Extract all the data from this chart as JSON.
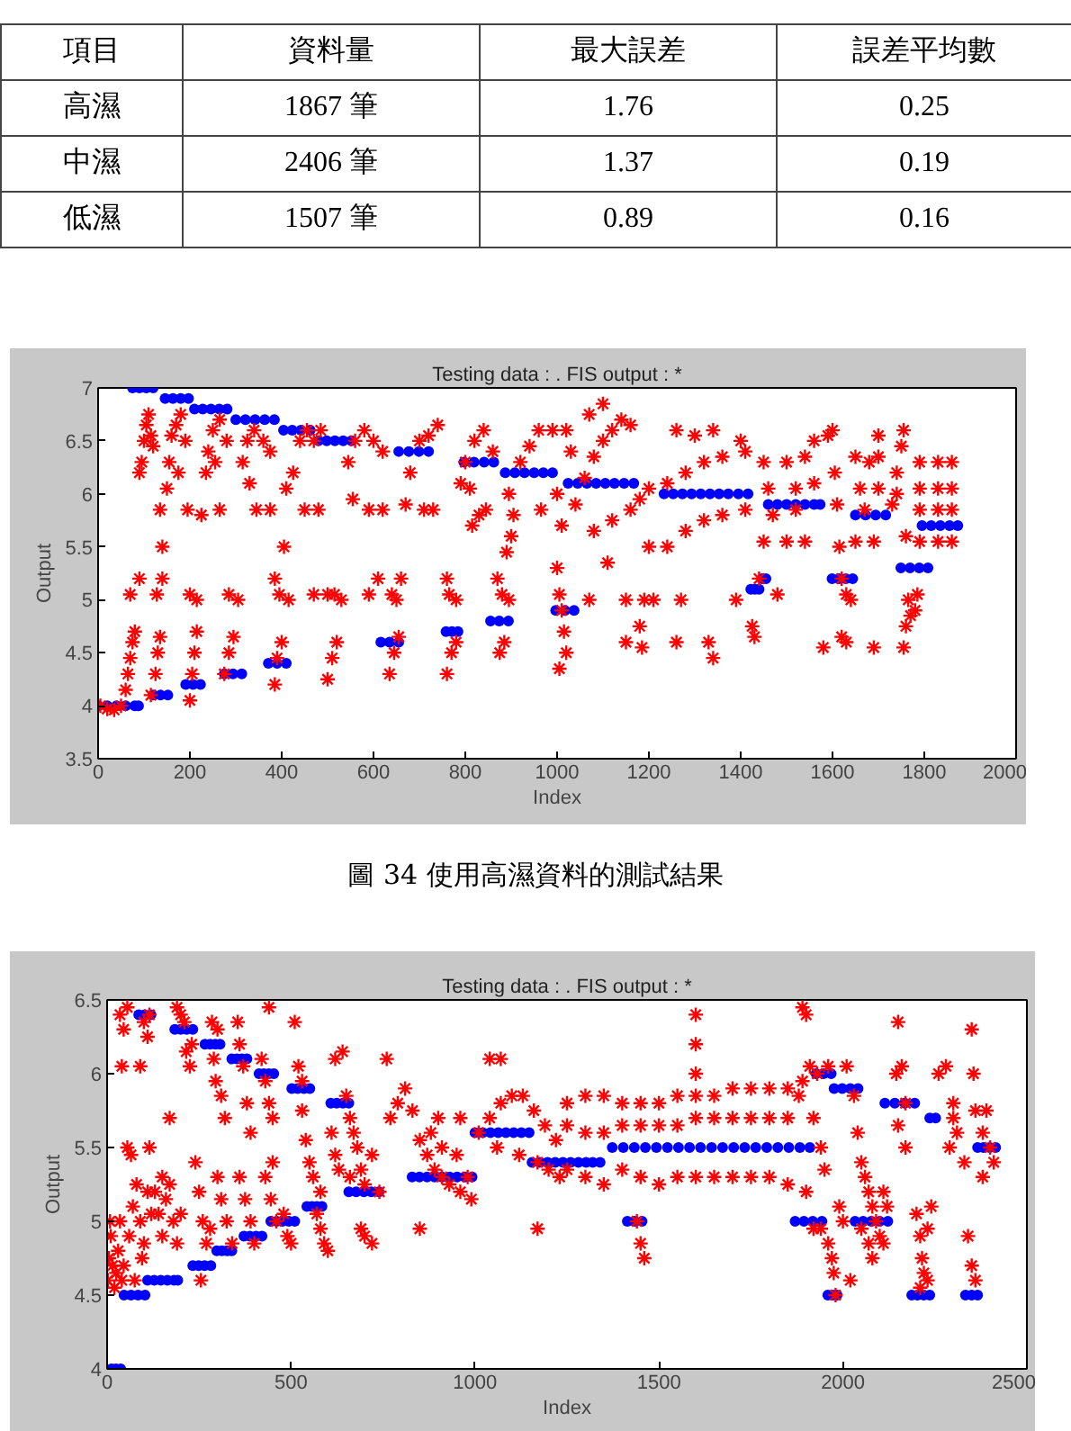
{
  "chart_data": [
    {
      "type": "other",
      "categories": [
        "項目",
        "資料量",
        "最大誤差",
        "誤差平均數"
      ],
      "y_categories": [
        "高濕",
        "中濕",
        "低濕"
      ],
      "cell_labels": [
        [
          "1867 筆",
          "1.76",
          "0.25"
        ],
        [
          "2406 筆",
          "1.37",
          "0.19"
        ],
        [
          "1507 筆",
          "0.89",
          "0.16"
        ]
      ]
    },
    {
      "type": "scatter",
      "title": "Testing data : . FIS output : *",
      "xlabel": "Index",
      "ylabel": "Output",
      "xlim": [
        0,
        2000
      ],
      "xticks": [
        0,
        200,
        400,
        600,
        800,
        1000,
        1200,
        1400,
        1600,
        1800,
        2000
      ],
      "ylim": [
        3.5,
        7
      ],
      "yticks": [
        3.5,
        4,
        4.5,
        5,
        5.5,
        6,
        6.5,
        7
      ],
      "annotations": [
        "圖 34 使用高濕資料的測試結果"
      ],
      "series": [
        {
          "color": "#0000ff",
          "marker": "circle",
          "x": [
            0,
            20,
            40,
            60,
            80,
            88,
            75,
            90,
            105,
            120,
            120,
            136,
            152,
            146,
            163,
            180,
            197,
            191,
            207,
            223,
            210,
            228,
            246,
            264,
            281,
            275,
            294,
            313,
            300,
            321,
            342,
            363,
            384,
            371,
            390,
            410,
            404,
            423,
            442,
            462,
            480,
            498,
            516,
            534,
            552,
            616,
            635,
            655,
            655,
            677,
            699,
            720,
            758,
            771,
            784,
            797,
            819,
            841,
            862,
            855,
            874,
            894,
            887,
            908,
            929,
            950,
            970,
            990,
            997,
            1017,
            1037,
            1024,
            1045,
            1065,
            1085,
            1105,
            1125,
            1146,
            1167,
            1233,
            1253,
            1273,
            1293,
            1313,
            1333,
            1353,
            1373,
            1395,
            1416,
            1422,
            1431,
            1440,
            1447,
            1455,
            1460,
            1480,
            1500,
            1520,
            1540,
            1560,
            1573,
            1599,
            1614,
            1629,
            1644,
            1650,
            1672,
            1694,
            1716,
            1749,
            1769,
            1789,
            1808,
            1795,
            1815,
            1835,
            1855,
            1873
          ],
          "values": [
            4.0,
            4.0,
            4.0,
            4.0,
            4.0,
            4.0,
            7.0,
            7.0,
            7.0,
            7.0,
            4.1,
            4.1,
            4.1,
            6.9,
            6.9,
            6.9,
            6.9,
            4.2,
            4.2,
            4.2,
            6.8,
            6.8,
            6.8,
            6.8,
            6.8,
            4.3,
            4.3,
            4.3,
            6.7,
            6.7,
            6.7,
            6.7,
            6.7,
            4.4,
            4.4,
            4.4,
            6.6,
            6.6,
            6.6,
            6.6,
            6.5,
            6.5,
            6.5,
            6.5,
            6.5,
            4.6,
            4.6,
            4.6,
            6.4,
            6.4,
            6.4,
            6.4,
            4.7,
            4.7,
            4.7,
            6.3,
            6.3,
            6.3,
            6.3,
            4.8,
            4.8,
            4.8,
            6.2,
            6.2,
            6.2,
            6.2,
            6.2,
            6.2,
            4.9,
            4.9,
            4.9,
            6.1,
            6.1,
            6.1,
            6.1,
            6.1,
            6.1,
            6.1,
            6.1,
            6.0,
            6.0,
            6.0,
            6.0,
            6.0,
            6.0,
            6.0,
            6.0,
            6.0,
            6.0,
            5.1,
            5.1,
            5.1,
            5.2,
            5.2,
            5.9,
            5.9,
            5.9,
            5.9,
            5.9,
            5.9,
            5.9,
            5.2,
            5.2,
            5.2,
            5.2,
            5.8,
            5.8,
            5.8,
            5.8,
            5.3,
            5.3,
            5.3,
            5.3,
            5.7,
            5.7,
            5.7,
            5.7,
            5.7
          ]
        },
        {
          "color": "#ff0000",
          "marker": "cross",
          "x": [
            5,
            20,
            35,
            50,
            60,
            65,
            70,
            75,
            80,
            70,
            90,
            90,
            95,
            100,
            105,
            110,
            115,
            120,
            115,
            125,
            130,
            135,
            128,
            140,
            135,
            140,
            150,
            155,
            160,
            170,
            180,
            190,
            175,
            200,
            205,
            210,
            215,
            200,
            215,
            195,
            225,
            235,
            240,
            250,
            265,
            280,
            255,
            265,
            275,
            285,
            295,
            285,
            305,
            315,
            325,
            340,
            360,
            375,
            330,
            345,
            375,
            385,
            390,
            400,
            395,
            385,
            405,
            415,
            410,
            425,
            440,
            455,
            470,
            485,
            450,
            480,
            500,
            510,
            520,
            500,
            515,
            530,
            470,
            545,
            560,
            580,
            600,
            620,
            555,
            590,
            620,
            610,
            635,
            645,
            655,
            650,
            640,
            590,
            660,
            670,
            680,
            700,
            720,
            740,
            730,
            710,
            760,
            770,
            780,
            765,
            780,
            760,
            790,
            800,
            820,
            840,
            860,
            815,
            830,
            845,
            810,
            875,
            885,
            880,
            895,
            870,
            890,
            895,
            905,
            920,
            940,
            960,
            990,
            965,
            900,
            1000,
            1005,
            1010,
            1015,
            1020,
            1005,
            1000,
            1010,
            1030,
            1020,
            1040,
            1060,
            1080,
            1100,
            1120,
            1140,
            1160,
            1070,
            1100,
            1080,
            1120,
            1160,
            1180,
            1070,
            1110,
            1150,
            1180,
            1190,
            1185,
            1150,
            1200,
            1240,
            1280,
            1320,
            1360,
            1410,
            1260,
            1300,
            1340,
            1400,
            1200,
            1240,
            1280,
            1320,
            1360,
            1410,
            1210,
            1270,
            1330,
            1340,
            1260,
            1390,
            1425,
            1430,
            1450,
            1500,
            1540,
            1460,
            1520,
            1560,
            1450,
            1500,
            1540,
            1470,
            1520,
            1440,
            1480,
            1580,
            1590,
            1560,
            1600,
            1605,
            1610,
            1615,
            1620,
            1630,
            1640,
            1620,
            1630,
            1650,
            1680,
            1700,
            1660,
            1700,
            1650,
            1690,
            1690,
            1700,
            1670,
            1730,
            1740,
            1750,
            1755,
            1740,
            1760,
            1765,
            1770,
            1760,
            1755,
            1790,
            1830,
            1860,
            1790,
            1830,
            1860,
            1790,
            1830,
            1860,
            1790,
            1830,
            1860,
            1785,
            1780
          ],
          "values": [
            4.0,
            3.97,
            3.96,
            4.0,
            4.15,
            4.3,
            4.45,
            4.6,
            4.7,
            5.05,
            5.2,
            6.2,
            6.3,
            6.5,
            6.65,
            6.75,
            6.55,
            6.45,
            4.1,
            4.3,
            4.5,
            4.65,
            5.05,
            5.2,
            5.85,
            5.5,
            6.05,
            6.3,
            6.55,
            6.65,
            6.75,
            6.5,
            6.2,
            4.05,
            4.3,
            4.5,
            4.7,
            5.05,
            5.0,
            5.85,
            5.8,
            6.2,
            6.4,
            6.6,
            6.7,
            6.5,
            6.3,
            5.85,
            4.3,
            4.5,
            4.65,
            5.05,
            5.0,
            6.3,
            6.5,
            6.6,
            6.5,
            6.4,
            6.1,
            5.85,
            5.85,
            4.2,
            4.45,
            4.6,
            5.05,
            5.2,
            5.5,
            5.0,
            6.05,
            6.2,
            6.5,
            6.6,
            6.5,
            6.6,
            5.85,
            5.85,
            4.25,
            4.45,
            4.6,
            5.05,
            5.05,
            5.0,
            5.05,
            6.3,
            6.5,
            6.6,
            6.5,
            6.4,
            5.95,
            5.85,
            5.85,
            5.2,
            4.3,
            4.5,
            4.65,
            5.0,
            5.05,
            5.05,
            5.2,
            5.9,
            6.2,
            6.5,
            6.55,
            6.65,
            5.85,
            5.85,
            4.3,
            4.5,
            4.6,
            5.05,
            5.0,
            5.2,
            6.1,
            6.3,
            6.5,
            6.6,
            6.4,
            5.7,
            5.8,
            5.85,
            6.05,
            4.5,
            4.6,
            5.05,
            5.0,
            5.2,
            5.45,
            6.0,
            5.8,
            6.3,
            6.45,
            6.6,
            6.6,
            5.85,
            5.6,
            5.3,
            5.05,
            4.9,
            4.7,
            4.5,
            4.35,
            6.0,
            5.7,
            6.4,
            6.6,
            5.9,
            6.15,
            6.35,
            6.5,
            6.6,
            6.7,
            6.65,
            6.75,
            6.85,
            5.65,
            5.75,
            5.85,
            5.95,
            5.0,
            5.35,
            5.0,
            4.75,
            5.0,
            4.55,
            4.6,
            6.05,
            6.1,
            6.2,
            6.3,
            6.35,
            6.4,
            6.6,
            6.55,
            6.6,
            6.5,
            5.5,
            5.5,
            5.65,
            5.75,
            5.8,
            5.85,
            5.0,
            5.0,
            4.6,
            4.45,
            4.6,
            5.0,
            4.75,
            4.65,
            6.3,
            6.3,
            6.35,
            6.05,
            6.05,
            6.1,
            5.55,
            5.55,
            5.55,
            5.8,
            5.85,
            5.2,
            5.05,
            4.55,
            6.55,
            6.5,
            6.6,
            6.2,
            5.9,
            5.5,
            5.2,
            5.05,
            5.0,
            4.65,
            4.6,
            6.35,
            6.3,
            6.35,
            6.05,
            6.05,
            5.55,
            5.55,
            4.55,
            6.55,
            5.85,
            5.9,
            6.2,
            6.45,
            6.6,
            6.0,
            5.6,
            5.0,
            4.85,
            4.75,
            4.55,
            6.3,
            6.3,
            6.3,
            6.05,
            6.05,
            6.05,
            5.85,
            5.85,
            5.85,
            5.55,
            5.55,
            5.55,
            5.05,
            4.9
          ]
        }
      ]
    },
    {
      "type": "scatter",
      "title": "Testing data : . FIS output : *",
      "xlabel": "Index",
      "ylabel": "Output",
      "xlim": [
        0,
        2500
      ],
      "xticks": [
        0,
        500,
        1000,
        1500,
        2000,
        2500
      ],
      "ylim": [
        4,
        6.5
      ],
      "yticks": [
        4,
        4.5,
        5,
        5.5,
        6,
        6.5
      ],
      "series": [
        {
          "color": "#0000ff",
          "marker": "circle",
          "x": [
            12,
            24,
            37,
            46,
            65,
            84,
            103,
            86,
            102,
            119,
            110,
            128,
            146,
            164,
            182,
            192,
            184,
            200,
            216,
            233,
            233,
            249,
            265,
            282,
            266,
            280,
            294,
            307,
            298,
            312,
            326,
            339,
            339,
            353,
            366,
            380,
            372,
            388,
            405,
            421,
            413,
            426,
            440,
            453,
            445,
            461,
            477,
            494,
            510,
            502,
            518,
            535,
            551,
            543,
            557,
            570,
            584,
            608,
            624,
            641,
            657,
            657,
            677,
            698,
            718,
            739,
            829,
            849,
            870,
            890,
            910,
            931,
            951,
            972,
            992,
            1000,
            1021,
            1042,
            1063,
            1084,
            1105,
            1126,
            1147,
            1155,
            1176,
            1197,
            1218,
            1239,
            1260,
            1281,
            1302,
            1320,
            1340,
            1373,
            1403,
            1433,
            1463,
            1493,
            1523,
            1553,
            1583,
            1613,
            1643,
            1673,
            1703,
            1733,
            1763,
            1793,
            1823,
            1853,
            1883,
            1910,
            1414,
            1434,
            1454,
            1870,
            1894,
            1918,
            1943,
            1927,
            1947,
            1968,
            1959,
            1972,
            1984,
            1976,
            1998,
            2020,
            2041,
            2033,
            2055,
            2077,
            2100,
            2122,
            2114,
            2141,
            2168,
            2195,
            2187,
            2203,
            2220,
            2236,
            2236,
            2252,
            2333,
            2350,
            2366,
            2366,
            2382,
            2399,
            2415
          ],
          "values": [
            4.0,
            4.0,
            4.0,
            4.5,
            4.5,
            4.5,
            4.5,
            6.4,
            6.4,
            6.4,
            4.6,
            4.6,
            4.6,
            4.6,
            4.6,
            4.6,
            6.3,
            6.3,
            6.3,
            6.3,
            4.7,
            4.7,
            4.7,
            4.7,
            6.2,
            6.2,
            6.2,
            6.2,
            4.8,
            4.8,
            4.8,
            4.8,
            6.1,
            6.1,
            6.1,
            6.1,
            4.9,
            4.9,
            4.9,
            4.9,
            6.0,
            6.0,
            6.0,
            6.0,
            5.0,
            5.0,
            5.0,
            5.0,
            5.0,
            5.9,
            5.9,
            5.9,
            5.9,
            5.1,
            5.1,
            5.1,
            5.1,
            5.8,
            5.8,
            5.8,
            5.8,
            5.2,
            5.2,
            5.2,
            5.2,
            5.2,
            5.3,
            5.3,
            5.3,
            5.3,
            5.3,
            5.3,
            5.3,
            5.3,
            5.3,
            5.6,
            5.6,
            5.6,
            5.6,
            5.6,
            5.6,
            5.6,
            5.6,
            5.4,
            5.4,
            5.4,
            5.4,
            5.4,
            5.4,
            5.4,
            5.4,
            5.4,
            5.4,
            5.5,
            5.5,
            5.5,
            5.5,
            5.5,
            5.5,
            5.5,
            5.5,
            5.5,
            5.5,
            5.5,
            5.5,
            5.5,
            5.5,
            5.5,
            5.5,
            5.5,
            5.5,
            5.5,
            5.0,
            5.0,
            5.0,
            5.0,
            5.0,
            5.0,
            5.0,
            6.0,
            6.0,
            6.0,
            4.5,
            4.5,
            4.5,
            5.9,
            5.9,
            5.9,
            5.9,
            5.0,
            5.0,
            5.0,
            5.0,
            5.0,
            5.8,
            5.8,
            5.8,
            5.8,
            4.5,
            4.5,
            4.5,
            4.5,
            5.7,
            5.7,
            4.5,
            4.5,
            4.5,
            5.5,
            5.5,
            5.5,
            5.5
          ]
        },
        {
          "color": "#ff0000",
          "marker": "cross",
          "x": [
            2,
            5,
            10,
            15,
            20,
            25,
            30,
            35,
            8,
            40,
            45,
            35,
            45,
            55,
            40,
            90,
            100,
            110,
            115,
            60,
            70,
            80,
            90,
            100,
            110,
            120,
            55,
            65,
            115,
            75,
            95,
            130,
            140,
            150,
            160,
            170,
            180,
            190,
            200,
            150,
            170,
            190,
            200,
            210,
            215,
            225,
            230,
            240,
            250,
            260,
            270,
            280,
            255,
            285,
            290,
            295,
            300,
            310,
            320,
            300,
            310,
            325,
            340,
            355,
            360,
            370,
            380,
            390,
            360,
            375,
            390,
            400,
            420,
            430,
            440,
            450,
            430,
            445,
            460,
            440,
            450,
            480,
            490,
            500,
            510,
            520,
            530,
            530,
            540,
            550,
            560,
            570,
            580,
            590,
            600,
            580,
            620,
            640,
            650,
            660,
            670,
            680,
            690,
            700,
            720,
            740,
            700,
            720,
            690,
            610,
            620,
            630,
            660,
            770,
            790,
            810,
            830,
            850,
            870,
            890,
            910,
            930,
            960,
            990,
            880,
            910,
            950,
            980,
            960,
            900,
            760,
            850,
            1010,
            1040,
            1070,
            1100,
            1130,
            1160,
            1190,
            1220,
            1040,
            1070,
            1060,
            1120,
            1170,
            1200,
            1230,
            1170,
            1250,
            1300,
            1350,
            1400,
            1450,
            1500,
            1550,
            1600,
            1650,
            1700,
            1750,
            1800,
            1850,
            1880,
            1250,
            1300,
            1350,
            1400,
            1450,
            1500,
            1550,
            1600,
            1650,
            1700,
            1750,
            1800,
            1850,
            1250,
            1300,
            1350,
            1400,
            1450,
            1500,
            1550,
            1600,
            1650,
            1700,
            1750,
            1800,
            1850,
            1900,
            1440,
            1450,
            1460,
            1600,
            1600,
            1600,
            1890,
            1900,
            1890,
            1910,
            1930,
            1960,
            1920,
            1940,
            1950,
            1920,
            1940,
            1960,
            1970,
            1975,
            1980,
            1990,
            2000,
            2010,
            2030,
            2040,
            2050,
            2060,
            2070,
            2080,
            2090,
            2100,
            2110,
            2050,
            2070,
            2080,
            2020,
            2110,
            2120,
            2145,
            2160,
            2170,
            2150,
            2170,
            2200,
            2210,
            2215,
            2220,
            2210,
            2230,
            2230,
            2150,
            2240,
            2260,
            2280,
            2300,
            2290,
            2310,
            2330,
            2350,
            2355,
            2360,
            2340,
            2350,
            2360,
            2380,
            2390,
            2400,
            2410,
            2380,
            2300
          ],
          "values": [
            4.6,
            4.75,
            4.9,
            4.7,
            4.55,
            4.65,
            4.8,
            5.0,
            5.0,
            4.6,
            4.7,
            6.4,
            6.3,
            6.45,
            6.05,
            6.05,
            6.35,
            6.25,
            6.4,
            4.9,
            5.1,
            5.25,
            5.0,
            4.85,
            5.2,
            5.05,
            5.5,
            5.45,
            5.5,
            4.6,
            4.75,
            5.2,
            5.05,
            4.9,
            5.15,
            5.25,
            5.0,
            4.85,
            5.05,
            5.3,
            5.7,
            6.45,
            6.4,
            6.35,
            6.15,
            6.05,
            6.2,
            5.4,
            5.2,
            5.0,
            4.85,
            4.95,
            4.6,
            6.35,
            6.1,
            5.95,
            6.3,
            5.85,
            5.7,
            5.3,
            5.15,
            5.0,
            4.85,
            6.35,
            6.2,
            6.05,
            5.8,
            5.6,
            5.3,
            5.15,
            5.0,
            4.85,
            6.1,
            5.95,
            5.8,
            5.7,
            5.3,
            5.15,
            5.0,
            6.45,
            5.4,
            5.05,
            4.9,
            4.85,
            6.35,
            6.05,
            5.95,
            5.75,
            5.55,
            5.4,
            5.3,
            5.05,
            4.95,
            4.85,
            4.8,
            5.2,
            6.1,
            6.15,
            5.85,
            5.7,
            5.6,
            5.5,
            5.35,
            5.25,
            5.45,
            5.2,
            4.9,
            4.85,
            4.95,
            5.6,
            5.45,
            5.35,
            5.3,
            5.7,
            5.8,
            5.9,
            5.75,
            5.55,
            5.45,
            5.35,
            5.3,
            5.25,
            5.2,
            5.15,
            5.6,
            5.5,
            5.45,
            5.3,
            5.7,
            5.7,
            6.1,
            4.95,
            5.6,
            5.7,
            5.8,
            5.85,
            5.85,
            5.75,
            5.65,
            5.55,
            6.1,
            6.1,
            5.5,
            5.45,
            5.4,
            5.35,
            5.3,
            4.95,
            5.8,
            5.85,
            5.85,
            5.8,
            5.8,
            5.8,
            5.85,
            5.85,
            5.85,
            5.9,
            5.9,
            5.9,
            5.9,
            5.85,
            5.65,
            5.6,
            5.6,
            5.65,
            5.65,
            5.65,
            5.65,
            5.7,
            5.7,
            5.7,
            5.7,
            5.7,
            5.7,
            5.35,
            5.3,
            5.25,
            5.35,
            5.3,
            5.25,
            5.3,
            5.3,
            5.3,
            5.3,
            5.3,
            5.3,
            5.25,
            5.2,
            5.0,
            4.85,
            4.75,
            6.4,
            6.2,
            6.0,
            6.45,
            6.4,
            5.95,
            6.05,
            6.0,
            6.05,
            5.7,
            5.5,
            5.35,
            4.95,
            4.95,
            4.85,
            4.75,
            4.65,
            4.5,
            5.1,
            5.0,
            6.05,
            5.85,
            5.6,
            5.4,
            5.3,
            5.2,
            5.1,
            5.0,
            4.9,
            4.85,
            4.95,
            4.85,
            4.75,
            4.6,
            5.2,
            5.1,
            6.0,
            6.05,
            5.8,
            5.65,
            5.5,
            5.05,
            4.9,
            4.75,
            4.65,
            4.55,
            4.6,
            4.95,
            6.35,
            5.1,
            6.0,
            6.05,
            5.7,
            5.5,
            5.6,
            5.4,
            6.3,
            6.0,
            5.75,
            4.9,
            4.7,
            4.6,
            5.6,
            5.75,
            5.5,
            5.4,
            5.3,
            5.8
          ]
        }
      ]
    }
  ]
}
